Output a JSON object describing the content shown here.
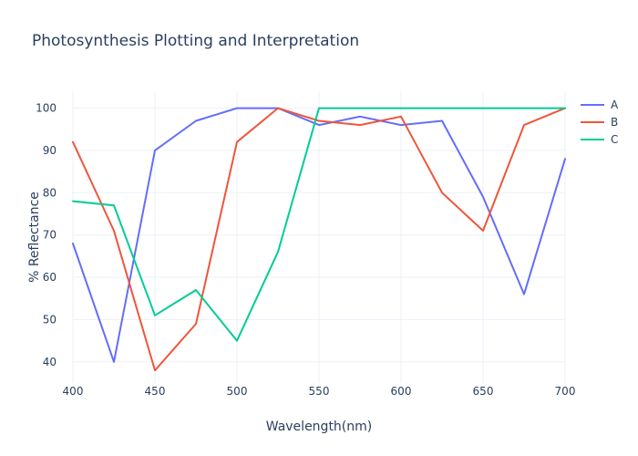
{
  "chart_data": {
    "type": "line",
    "title": "Photosynthesis Plotting and Interpretation",
    "xlabel": "Wavelength(nm)",
    "ylabel": "% Reflectance",
    "xlim": [
      400,
      700
    ],
    "ylim": [
      35,
      104
    ],
    "x_ticks": [
      400,
      450,
      500,
      550,
      600,
      650,
      700
    ],
    "y_ticks": [
      40,
      50,
      60,
      70,
      80,
      90,
      100
    ],
    "grid": true,
    "legend_position": "top-right",
    "x": [
      400,
      425,
      450,
      475,
      500,
      525,
      550,
      575,
      600,
      625,
      650,
      675,
      700
    ],
    "series": [
      {
        "name": "A",
        "color": "#636efa",
        "values": [
          68,
          40,
          90,
          97,
          100,
          100,
          96,
          98,
          96,
          97,
          79,
          56,
          88
        ]
      },
      {
        "name": "B",
        "color": "#ef553b",
        "values": [
          92,
          71,
          38,
          49,
          92,
          100,
          97,
          96,
          98,
          80,
          71,
          96,
          100
        ]
      },
      {
        "name": "C",
        "color": "#00cc96",
        "values": [
          78,
          77,
          51,
          57,
          45,
          66,
          100,
          100,
          100,
          100,
          100,
          100,
          100
        ]
      }
    ]
  }
}
